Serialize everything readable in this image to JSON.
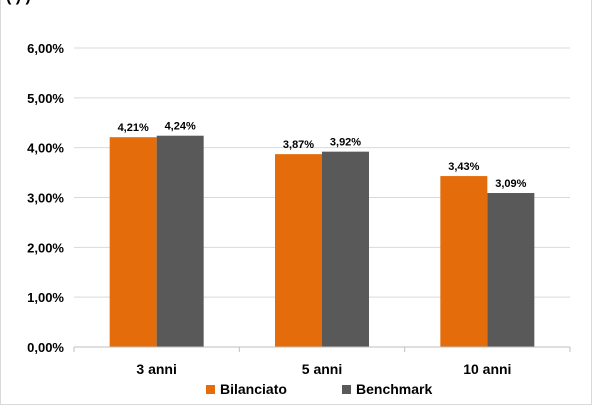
{
  "header_fragment": "(            )                        )",
  "chart_data": {
    "type": "bar",
    "categories": [
      "3 anni",
      "5 anni",
      "10 anni"
    ],
    "series": [
      {
        "name": "Bilanciato",
        "values": [
          4.21,
          3.87,
          3.43
        ],
        "labels": [
          "4,21%",
          "3,87%",
          "3,43%"
        ],
        "color": "#e46c0a"
      },
      {
        "name": "Benchmark",
        "values": [
          4.24,
          3.92,
          3.09
        ],
        "labels": [
          "4,24%",
          "3,92%",
          "3,09%"
        ],
        "color": "#595959"
      }
    ],
    "yticks": [
      "0,00%",
      "1,00%",
      "2,00%",
      "3,00%",
      "4,00%",
      "5,00%",
      "6,00%"
    ],
    "ylim": [
      0,
      6
    ],
    "grid": true,
    "legend": "bottom",
    "gridline_color": "#d9d9d9"
  }
}
